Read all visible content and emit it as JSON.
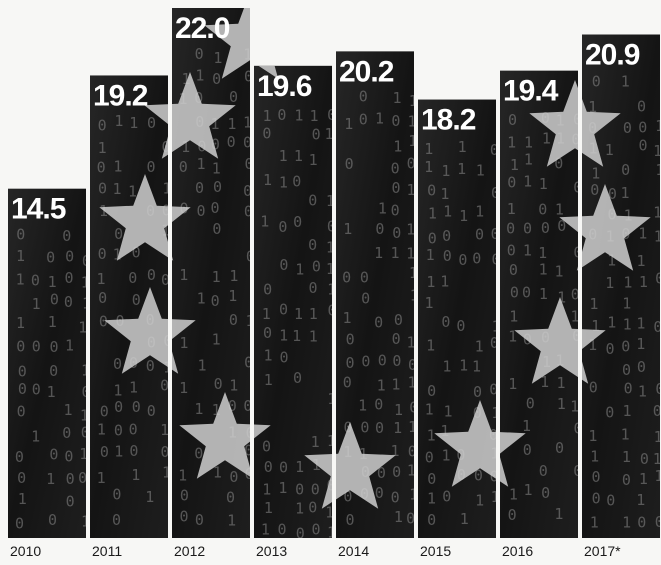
{
  "chart_data": {
    "type": "bar",
    "categories": [
      "2010",
      "2011",
      "2012",
      "2013",
      "2014",
      "2015",
      "2016",
      "2017*"
    ],
    "values": [
      14.5,
      19.2,
      22.0,
      19.6,
      20.2,
      18.2,
      19.4,
      20.9
    ],
    "value_labels": [
      "14.5",
      "19.2",
      "22.0",
      "19.6",
      "20.2",
      "18.2",
      "19.4",
      "20.9"
    ],
    "title": "",
    "xlabel": "",
    "ylabel": "",
    "ylim": [
      0,
      22.0
    ],
    "grid": false,
    "legend": "none",
    "colors": {
      "bar": "#141414",
      "label": "#ffffff",
      "background": "#f7f7f5",
      "binary_texture": "#8a8a8a",
      "star": "#cfcfcf"
    }
  }
}
